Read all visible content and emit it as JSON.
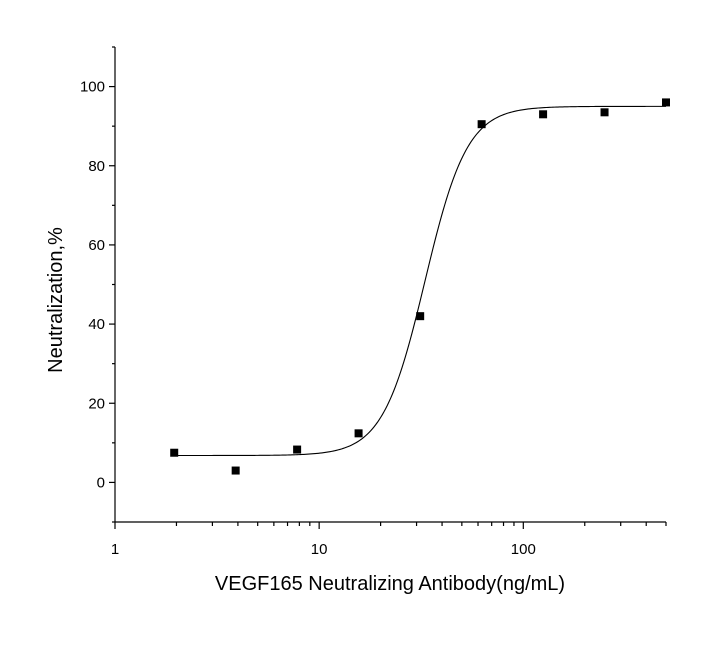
{
  "chart_data": {
    "type": "scatter",
    "xlabel": "VEGF165 Neutralizing Antibody(ng/mL)",
    "ylabel": "Neutralization,%",
    "xscale": "log",
    "xlim": [
      1,
      500
    ],
    "ylim": [
      -10,
      110
    ],
    "xticks": [
      1,
      10,
      100
    ],
    "xtick_labels": [
      "1",
      "10",
      "100"
    ],
    "yticks": [
      0,
      20,
      40,
      60,
      80,
      100
    ],
    "ytick_labels": [
      "0",
      "20",
      "40",
      "60",
      "80",
      "100"
    ],
    "grid": false,
    "series": [
      {
        "marker": "square",
        "color": "#000000",
        "x": [
          1.95,
          3.9,
          7.8,
          15.6,
          31.25,
          62.5,
          125,
          250,
          500
        ],
        "y": [
          7.5,
          3,
          8.3,
          12.4,
          42,
          90.5,
          93,
          93.5,
          96
        ]
      }
    ],
    "fit": {
      "type": "4PL",
      "bottom": 6.8,
      "top": 95,
      "ec50": 33,
      "hill": 4.2,
      "color": "#000000"
    }
  }
}
